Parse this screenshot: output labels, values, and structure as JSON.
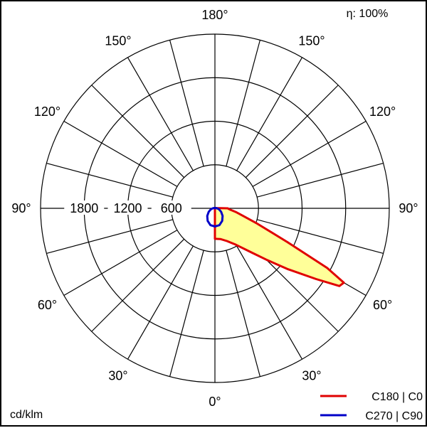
{
  "efficiency": "η: 100%",
  "unit_label": "cd/klm",
  "colors": {
    "c0": "#e00000",
    "c90": "#0000c8",
    "fill": "#ffff99",
    "grid": "#000000"
  },
  "chart_data": {
    "type": "polar-luminous-intensity",
    "title": "",
    "rlim": [
      0,
      2400
    ],
    "radial_ticks": [
      600,
      1200,
      1800
    ],
    "radial_tick_labels": [
      "600",
      "1200",
      "1800"
    ],
    "angle_step_deg": 15,
    "angle_labels_left": [
      "0°",
      "30°",
      "60°",
      "90°",
      "120°",
      "150°",
      "180°"
    ],
    "angle_labels_right": [
      "0°",
      "30°",
      "60°",
      "90°",
      "120°",
      "150°",
      "180°"
    ],
    "legend_position": "bottom-right",
    "series": [
      {
        "name": "C180 | C0",
        "color_key": "c0",
        "filled": true,
        "points_deg_cd": [
          [
            0,
            420
          ],
          [
            10,
            430
          ],
          [
            20,
            480
          ],
          [
            30,
            580
          ],
          [
            40,
            800
          ],
          [
            45,
            1000
          ],
          [
            50,
            1300
          ],
          [
            55,
            1700
          ],
          [
            58,
            2020
          ],
          [
            60,
            2050
          ],
          [
            62,
            1750
          ],
          [
            65,
            1100
          ],
          [
            70,
            620
          ],
          [
            75,
            400
          ],
          [
            80,
            290
          ],
          [
            85,
            210
          ],
          [
            88,
            185
          ],
          [
            90,
            178
          ],
          [
            100,
            25
          ],
          [
            120,
            10
          ],
          [
            180,
            0
          ]
        ]
      },
      {
        "name": "C270 | C90",
        "color_key": "c90",
        "filled": false,
        "points_deg_cd": [
          [
            0,
            250
          ],
          [
            15,
            240
          ],
          [
            30,
            200
          ],
          [
            45,
            150
          ],
          [
            60,
            100
          ],
          [
            75,
            60
          ],
          [
            90,
            30
          ],
          [
            120,
            10
          ],
          [
            150,
            5
          ],
          [
            180,
            0
          ]
        ],
        "mirrored": true
      }
    ]
  }
}
